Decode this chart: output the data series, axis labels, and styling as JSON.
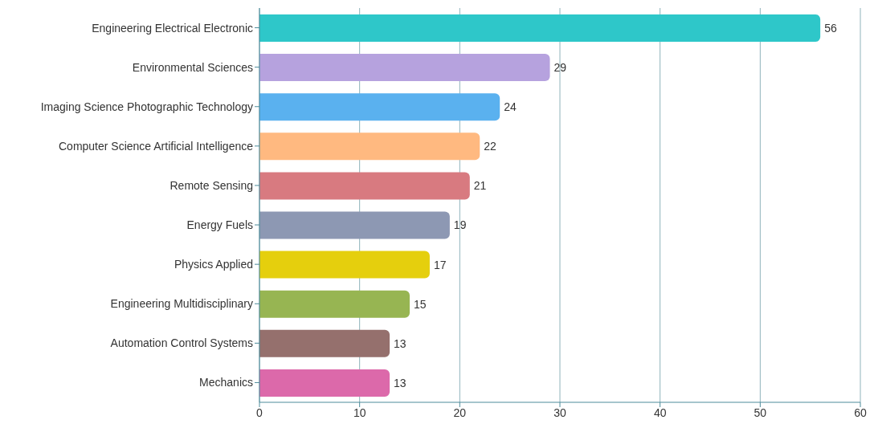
{
  "chart_data": {
    "type": "bar",
    "orientation": "horizontal",
    "categories": [
      "Engineering Electrical Electronic",
      "Environmental Sciences",
      "Imaging Science Photographic Technology",
      "Computer Science Artificial Intelligence",
      "Remote Sensing",
      "Energy Fuels",
      "Physics Applied",
      "Engineering Multidisciplinary",
      "Automation Control Systems",
      "Mechanics"
    ],
    "values": [
      56,
      29,
      24,
      22,
      21,
      19,
      17,
      15,
      13,
      13
    ],
    "colors": [
      "#2ec7c9",
      "#b6a2de",
      "#5ab1ef",
      "#ffb980",
      "#d87a80",
      "#8d98b3",
      "#e5cf0d",
      "#97b552",
      "#95706d",
      "#dc69aa"
    ],
    "xlim": [
      0,
      60
    ],
    "xticks": [
      0,
      10,
      20,
      30,
      40,
      50,
      60
    ],
    "grid": "x",
    "data_labels": true
  }
}
